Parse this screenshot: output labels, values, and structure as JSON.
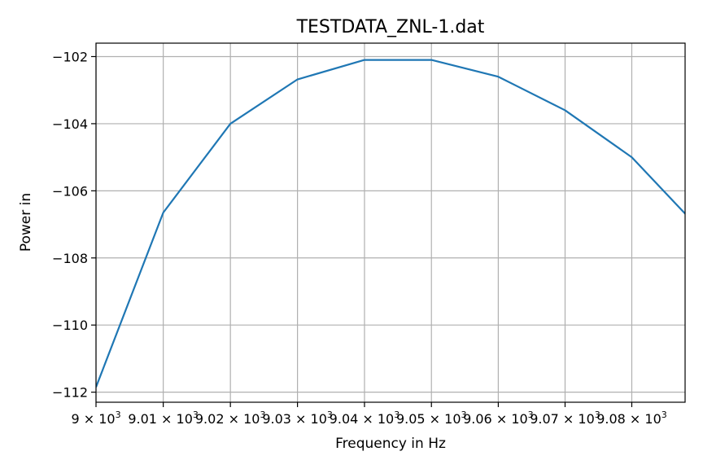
{
  "chart_data": {
    "type": "line",
    "title": "TESTDATA_ZNL-1.dat",
    "xlabel": "Frequency in Hz",
    "ylabel": "Power in",
    "x_scale": "log",
    "xlim": [
      9000,
      9088
    ],
    "ylim": [
      -112.3,
      -101.6
    ],
    "grid": true,
    "x_ticks": [
      {
        "value": 9000,
        "mantissa": "9",
        "exponent": "3"
      },
      {
        "value": 9010,
        "mantissa": "9.01",
        "exponent": "3"
      },
      {
        "value": 9020,
        "mantissa": "9.02",
        "exponent": "3"
      },
      {
        "value": 9030,
        "mantissa": "9.03",
        "exponent": "3"
      },
      {
        "value": 9040,
        "mantissa": "9.04",
        "exponent": "3"
      },
      {
        "value": 9050,
        "mantissa": "9.05",
        "exponent": "3"
      },
      {
        "value": 9060,
        "mantissa": "9.06",
        "exponent": "3"
      },
      {
        "value": 9070,
        "mantissa": "9.07",
        "exponent": "3"
      },
      {
        "value": 9080,
        "mantissa": "9.08",
        "exponent": "3"
      }
    ],
    "y_ticks": [
      {
        "value": -102,
        "label": "−102"
      },
      {
        "value": -104,
        "label": "−104"
      },
      {
        "value": -106,
        "label": "−106"
      },
      {
        "value": -108,
        "label": "−108"
      },
      {
        "value": -110,
        "label": "−110"
      },
      {
        "value": -112,
        "label": "−112"
      }
    ],
    "series": [
      {
        "color": "#1f77b4",
        "x": [
          9000,
          9010,
          9020,
          9030,
          9040,
          9050,
          9060,
          9070,
          9080,
          9090
        ],
        "y": [
          -111.85,
          -106.65,
          -104.0,
          -102.68,
          -102.1,
          -102.1,
          -102.6,
          -103.6,
          -105.0,
          -107.1
        ]
      }
    ]
  }
}
